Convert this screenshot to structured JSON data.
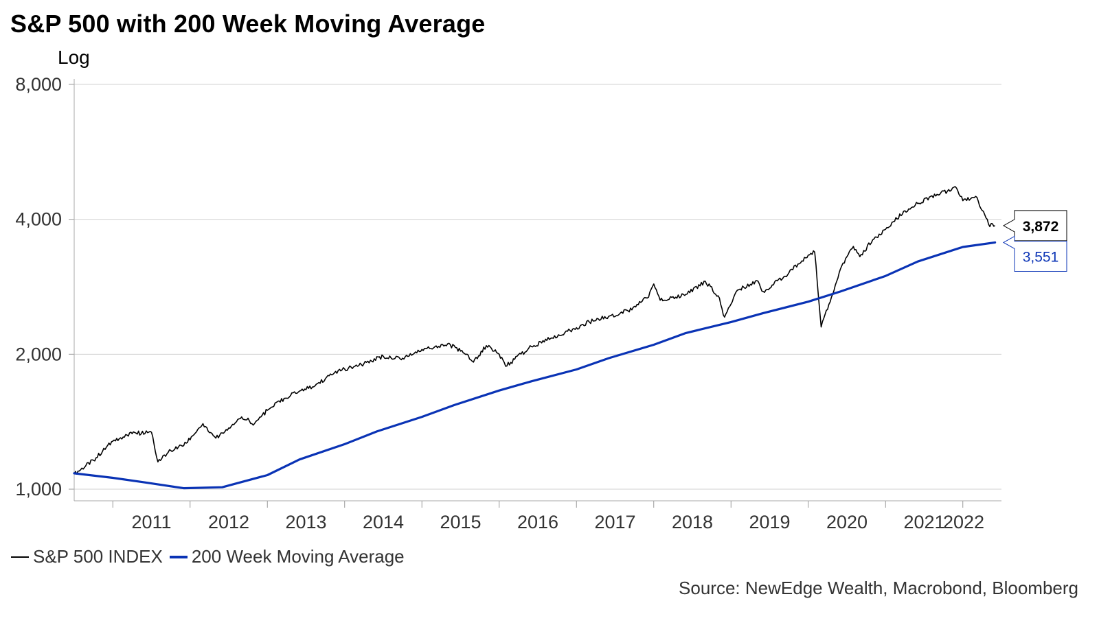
{
  "chart_data": {
    "type": "line",
    "title": "S&P 500 with 200 Week Moving Average",
    "subtitle": "Log",
    "y_scale": "log",
    "ylim": [
      1000,
      8000
    ],
    "y_ticks": [
      1000,
      2000,
      4000,
      8000
    ],
    "y_tick_labels": [
      "1,000",
      "2,000",
      "4,000",
      "8,000"
    ],
    "xlim": [
      "2010-07",
      "2022-07"
    ],
    "x_tick_labels": [
      "2011",
      "2012",
      "2013",
      "2014",
      "2015",
      "2016",
      "2017",
      "2018",
      "2019",
      "2020",
      "2021",
      "2022"
    ],
    "grid": "horizontal",
    "legend_position": "bottom-left",
    "source": "Source: NewEdge Wealth, Macrobond, Bloomberg",
    "series": [
      {
        "name": "S&P 500 INDEX",
        "color": "#000000",
        "last_value_label": "3,872",
        "x": [
          "2010-07",
          "2010-10",
          "2011-01",
          "2011-04",
          "2011-07",
          "2011-08",
          "2011-10",
          "2011-12",
          "2012-03",
          "2012-05",
          "2012-09",
          "2012-11",
          "2013-01",
          "2013-05",
          "2013-08",
          "2013-12",
          "2014-03",
          "2014-07",
          "2014-10",
          "2015-01",
          "2015-05",
          "2015-08",
          "2015-09",
          "2015-11",
          "2016-01",
          "2016-02",
          "2016-06",
          "2016-09",
          "2016-12",
          "2017-03",
          "2017-06",
          "2017-09",
          "2017-12",
          "2018-01",
          "2018-02",
          "2018-06",
          "2018-09",
          "2018-11",
          "2018-12",
          "2019-02",
          "2019-05",
          "2019-06",
          "2019-10",
          "2019-12",
          "2020-02",
          "2020-03",
          "2020-06",
          "2020-08",
          "2020-09",
          "2020-11",
          "2021-01",
          "2021-04",
          "2021-08",
          "2021-12",
          "2022-01",
          "2022-03",
          "2022-05",
          "2022-06"
        ],
        "y": [
          1080,
          1160,
          1280,
          1330,
          1340,
          1150,
          1220,
          1250,
          1400,
          1300,
          1450,
          1400,
          1500,
          1640,
          1690,
          1840,
          1880,
          1980,
          1960,
          2050,
          2110,
          2000,
          1920,
          2090,
          2000,
          1880,
          2080,
          2170,
          2260,
          2360,
          2430,
          2500,
          2670,
          2870,
          2640,
          2720,
          2910,
          2700,
          2420,
          2780,
          2920,
          2760,
          3040,
          3230,
          3380,
          2300,
          3100,
          3480,
          3300,
          3600,
          3800,
          4180,
          4500,
          4700,
          4400,
          4500,
          3900,
          3872
        ]
      },
      {
        "name": "200 Week Moving Average",
        "color": "#0a33b5",
        "last_value_label": "3,551",
        "x": [
          "2010-07",
          "2011-01",
          "2011-06",
          "2011-12",
          "2012-06",
          "2013-01",
          "2013-06",
          "2014-01",
          "2014-06",
          "2015-01",
          "2015-06",
          "2016-01",
          "2016-06",
          "2017-01",
          "2017-06",
          "2018-01",
          "2018-06",
          "2019-01",
          "2019-06",
          "2020-01",
          "2020-06",
          "2021-01",
          "2021-06",
          "2022-01",
          "2022-06"
        ],
        "y": [
          1085,
          1060,
          1035,
          1005,
          1010,
          1075,
          1165,
          1260,
          1345,
          1450,
          1540,
          1660,
          1740,
          1850,
          1960,
          2100,
          2230,
          2360,
          2470,
          2620,
          2760,
          2990,
          3220,
          3470,
          3551
        ]
      }
    ]
  }
}
